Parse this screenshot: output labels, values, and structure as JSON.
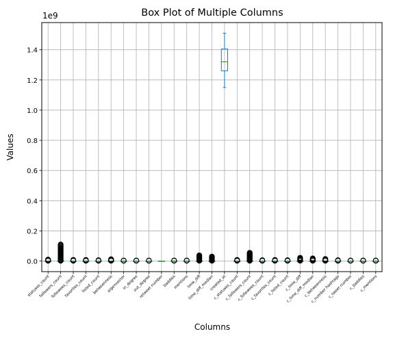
{
  "chart_data": {
    "type": "box",
    "title": "Box Plot of Multiple Columns",
    "xlabel": "Columns",
    "ylabel": "Values",
    "y_offset_label": "1e9",
    "ylim": [
      -0.07,
      1.58
    ],
    "y_ticks": [
      0.0,
      0.2,
      0.4,
      0.6,
      0.8,
      1.0,
      1.2,
      1.4
    ],
    "y_tick_labels": [
      "0.0",
      "0.2",
      "0.4",
      "0.6",
      "0.8",
      "1.0",
      "1.2",
      "1.4"
    ],
    "grid": true,
    "colors": {
      "box": "#1f77b4",
      "median": "#2ca02c",
      "grid": "#b0b0b0",
      "flier": "#000000"
    },
    "categories": [
      "statuses_count",
      "followers_count",
      "followees_count",
      "favorites_count",
      "listed_count",
      "betweenness",
      "eigenvector",
      "in_degree",
      "out_degree",
      "retweet number",
      "baddies",
      "mentions",
      "time_diff",
      "time_diff_median",
      "created_at",
      "c_statuses_count",
      "c_followers_count",
      "c_followees_count",
      "c_favorites_count",
      "c_listed_count",
      "c_time_diff",
      "c_time_diff_median",
      "c_betweenness",
      "c_number hashtags",
      "c_tweet number",
      "c_baddies",
      "c_mentions"
    ],
    "boxes": [
      {
        "q1": 0,
        "median": 0,
        "q3": 0,
        "whislo": 0,
        "whishi": 0,
        "fliers": [
          0.002,
          0.004,
          0.006,
          0.008,
          0.01
        ]
      },
      {
        "q1": 0,
        "median": 0,
        "q3": 0,
        "whislo": 0,
        "whishi": 0,
        "fliers": [
          0.002,
          0.006,
          0.01,
          0.015,
          0.02,
          0.025,
          0.03,
          0.035,
          0.04,
          0.045,
          0.05,
          0.055,
          0.06,
          0.065,
          0.07,
          0.075,
          0.08,
          0.085,
          0.09,
          0.095,
          0.1,
          0.105,
          0.11
        ]
      },
      {
        "q1": 0,
        "median": 0,
        "q3": 0,
        "whislo": 0,
        "whishi": 0,
        "fliers": [
          0.002,
          0.004,
          0.006,
          0.008
        ]
      },
      {
        "q1": 0,
        "median": 0,
        "q3": 0,
        "whislo": 0,
        "whishi": 0,
        "fliers": [
          0.002,
          0.004,
          0.006,
          0.008
        ]
      },
      {
        "q1": 0,
        "median": 0,
        "q3": 0,
        "whislo": 0,
        "whishi": 0,
        "fliers": [
          0.002,
          0.004,
          0.006
        ]
      },
      {
        "q1": 0,
        "median": 0,
        "q3": 0,
        "whislo": 0,
        "whishi": 0,
        "fliers": [
          0.002,
          0.004,
          0.006,
          0.008,
          0.01,
          0.012
        ]
      },
      {
        "q1": 0,
        "median": 0,
        "q3": 0,
        "whislo": 0,
        "whishi": 0,
        "fliers": [
          0.002,
          0.004
        ]
      },
      {
        "q1": 0,
        "median": 0,
        "q3": 0,
        "whislo": 0,
        "whishi": 0,
        "fliers": [
          0.002,
          0.004
        ]
      },
      {
        "q1": 0,
        "median": 0,
        "q3": 0,
        "whislo": 0,
        "whishi": 0,
        "fliers": [
          0.002,
          0.004
        ]
      },
      {
        "q1": 0,
        "median": 0,
        "q3": 0,
        "whislo": 0,
        "whishi": 0,
        "fliers": []
      },
      {
        "q1": 0,
        "median": 0,
        "q3": 0,
        "whislo": 0,
        "whishi": 0,
        "fliers": [
          0.002,
          0.004
        ]
      },
      {
        "q1": 0,
        "median": 0,
        "q3": 0,
        "whislo": 0,
        "whishi": 0,
        "fliers": [
          0.002,
          0.004
        ]
      },
      {
        "q1": 0,
        "median": 0,
        "q3": 0,
        "whislo": 0,
        "whishi": 0,
        "fliers": [
          0.002,
          0.006,
          0.01,
          0.014,
          0.018,
          0.022,
          0.026,
          0.03,
          0.034,
          0.038
        ]
      },
      {
        "q1": 0,
        "median": 0,
        "q3": 0,
        "whislo": 0,
        "whishi": 0,
        "fliers": [
          0.002,
          0.006,
          0.01,
          0.014,
          0.018,
          0.022,
          0.026,
          0.03
        ]
      },
      {
        "q1": 1.26,
        "median": 1.32,
        "q3": 1.405,
        "whislo": 1.15,
        "whishi": 1.51,
        "fliers": []
      },
      {
        "q1": 0,
        "median": 0,
        "q3": 0,
        "whislo": 0,
        "whishi": 0,
        "fliers": [
          0.002,
          0.004,
          0.006,
          0.008
        ]
      },
      {
        "q1": 0,
        "median": 0,
        "q3": 0,
        "whislo": 0,
        "whishi": 0,
        "fliers": [
          0.002,
          0.006,
          0.01,
          0.014,
          0.018,
          0.022,
          0.026,
          0.03,
          0.034,
          0.038,
          0.042,
          0.046,
          0.05,
          0.055
        ]
      },
      {
        "q1": 0,
        "median": 0,
        "q3": 0,
        "whislo": 0,
        "whishi": 0,
        "fliers": [
          0.002,
          0.004,
          0.006
        ]
      },
      {
        "q1": 0,
        "median": 0,
        "q3": 0,
        "whislo": 0,
        "whishi": 0,
        "fliers": [
          0.002,
          0.004,
          0.006,
          0.008
        ]
      },
      {
        "q1": 0,
        "median": 0,
        "q3": 0,
        "whislo": 0,
        "whishi": 0,
        "fliers": [
          0.002,
          0.004,
          0.006
        ]
      },
      {
        "q1": 0,
        "median": 0,
        "q3": 0,
        "whislo": 0,
        "whishi": 0,
        "fliers": [
          0.002,
          0.006,
          0.01,
          0.014,
          0.018,
          0.022
        ]
      },
      {
        "q1": 0,
        "median": 0,
        "q3": 0,
        "whislo": 0,
        "whishi": 0,
        "fliers": [
          0.002,
          0.006,
          0.01,
          0.014,
          0.018
        ]
      },
      {
        "q1": 0,
        "median": 0,
        "q3": 0,
        "whislo": 0,
        "whishi": 0,
        "fliers": [
          0.002,
          0.006,
          0.01,
          0.014
        ]
      },
      {
        "q1": 0,
        "median": 0,
        "q3": 0,
        "whislo": 0,
        "whishi": 0,
        "fliers": [
          0.002,
          0.004,
          0.006
        ]
      },
      {
        "q1": 0,
        "median": 0,
        "q3": 0,
        "whislo": 0,
        "whishi": 0,
        "fliers": [
          0.002,
          0.004
        ]
      },
      {
        "q1": 0,
        "median": 0,
        "q3": 0,
        "whislo": 0,
        "whishi": 0,
        "fliers": [
          0.002,
          0.004
        ]
      },
      {
        "q1": 0,
        "median": 0,
        "q3": 0,
        "whislo": 0,
        "whishi": 0,
        "fliers": [
          0.002,
          0.004
        ]
      }
    ]
  }
}
